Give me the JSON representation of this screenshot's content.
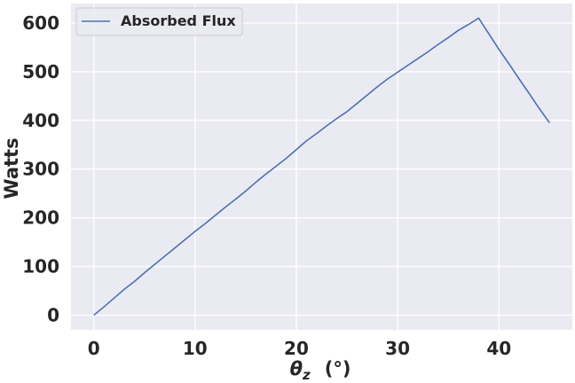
{
  "chart_data": {
    "type": "line",
    "title": "",
    "xlabel_symbol": "θ",
    "xlabel_subscript": "z",
    "xlabel_unit": "(°)",
    "ylabel": "Watts",
    "xlim": [
      -2.25,
      47.25
    ],
    "ylim": [
      -30,
      640
    ],
    "xticks": [
      0,
      10,
      20,
      30,
      40
    ],
    "yticks": [
      0,
      100,
      200,
      300,
      400,
      500,
      600
    ],
    "grid": true,
    "legend_position": "top-left",
    "series": [
      {
        "name": "Absorbed Flux",
        "color": "#4c72b0",
        "x": [
          0,
          1,
          2,
          3,
          4,
          5,
          6,
          7,
          8,
          9,
          10,
          11,
          12,
          13,
          14,
          15,
          16,
          17,
          18,
          19,
          20,
          21,
          22,
          23,
          24,
          25,
          26,
          27,
          28,
          29,
          30,
          31,
          32,
          33,
          34,
          35,
          36,
          37,
          38,
          39,
          40,
          41,
          42,
          43,
          44,
          45
        ],
        "y": [
          0,
          17,
          35,
          53,
          69,
          87,
          104,
          121,
          138,
          155,
          172,
          188,
          205,
          222,
          238,
          255,
          273,
          290,
          306,
          322,
          340,
          358,
          373,
          389,
          404,
          418,
          435,
          452,
          469,
          485,
          499,
          513,
          527,
          541,
          556,
          570,
          585,
          597,
          610,
          578,
          546,
          516,
          485,
          455,
          424,
          395
        ]
      }
    ]
  }
}
